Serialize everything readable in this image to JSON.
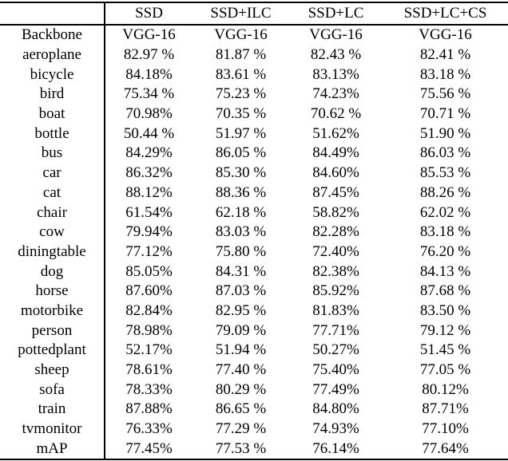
{
  "table": {
    "columns": [
      "",
      "SSD",
      "SSD+ILC",
      "SSD+LC",
      "SSD+LC+CS"
    ],
    "rows": [
      {
        "label": "Backbone",
        "values": [
          "VGG-16",
          "VGG-16",
          "VGG-16",
          "VGG-16"
        ],
        "bold": []
      },
      {
        "label": "aeroplane",
        "values": [
          "82.97 %",
          "81.87 %",
          "82.43 %",
          "82.41 %"
        ],
        "bold": []
      },
      {
        "label": "bicycle",
        "values": [
          "84.18%",
          "83.61 %",
          "83.13%",
          "83.18 %"
        ],
        "bold": []
      },
      {
        "label": "bird",
        "values": [
          "75.34 %",
          "75.23 %",
          "74.23%",
          "75.56 %"
        ],
        "bold": []
      },
      {
        "label": "boat",
        "values": [
          "70.98%",
          "70.35 %",
          "70.62 %",
          "70.71 %"
        ],
        "bold": []
      },
      {
        "label": "bottle",
        "values": [
          "50.44 %",
          "51.97 %",
          "51.62%",
          "51.90 %"
        ],
        "bold": []
      },
      {
        "label": "bus",
        "values": [
          "84.29%",
          "86.05 %",
          "84.49%",
          "86.03 %"
        ],
        "bold": []
      },
      {
        "label": "car",
        "values": [
          "86.32%",
          "85.30 %",
          "84.60%",
          "85.53 %"
        ],
        "bold": []
      },
      {
        "label": "cat",
        "values": [
          "88.12%",
          "88.36 %",
          "87.45%",
          "88.26 %"
        ],
        "bold": []
      },
      {
        "label": "chair",
        "values": [
          "61.54%",
          "62.18 %",
          "58.82%",
          "62.02 %"
        ],
        "bold": []
      },
      {
        "label": "cow",
        "values": [
          "79.94%",
          "83.03 %",
          "82.28%",
          "83.18 %"
        ],
        "bold": []
      },
      {
        "label": "diningtable",
        "values": [
          "77.12%",
          "75.80 %",
          "72.40%",
          "76.20 %"
        ],
        "bold": []
      },
      {
        "label": "dog",
        "values": [
          "85.05%",
          "84.31 %",
          "82.38%",
          "84.13 %"
        ],
        "bold": []
      },
      {
        "label": "horse",
        "values": [
          "87.60%",
          "87.03 %",
          "85.92%",
          "87.68 %"
        ],
        "bold": []
      },
      {
        "label": "motorbike",
        "values": [
          "82.84%",
          "82.95 %",
          "81.83%",
          "83.50 %"
        ],
        "bold": []
      },
      {
        "label": "person",
        "values": [
          "78.98%",
          "79.09 %",
          "77.71%",
          "79.12 %"
        ],
        "bold": []
      },
      {
        "label": "pottedplant",
        "values": [
          "52.17%",
          "51.94 %",
          "50.27%",
          "51.45 %"
        ],
        "bold": []
      },
      {
        "label": "sheep",
        "values": [
          "78.61%",
          "77.40 %",
          "75.40%",
          "77.05 %"
        ],
        "bold": []
      },
      {
        "label": "sofa",
        "values": [
          "78.33%",
          "80.29 %",
          "77.49%",
          "80.12%"
        ],
        "bold": []
      },
      {
        "label": "train",
        "values": [
          "87.88%",
          "86.65 %",
          "84.80%",
          "87.71%"
        ],
        "bold": []
      },
      {
        "label": "tvmonitor",
        "values": [
          "76.33%",
          "77.29 %",
          "74.93%",
          "77.10%"
        ],
        "bold": []
      },
      {
        "label": "mAP",
        "values": [
          "77.45%",
          "77.53 %",
          "76.14%",
          "77.64%"
        ],
        "bold": [
          3
        ]
      }
    ]
  }
}
